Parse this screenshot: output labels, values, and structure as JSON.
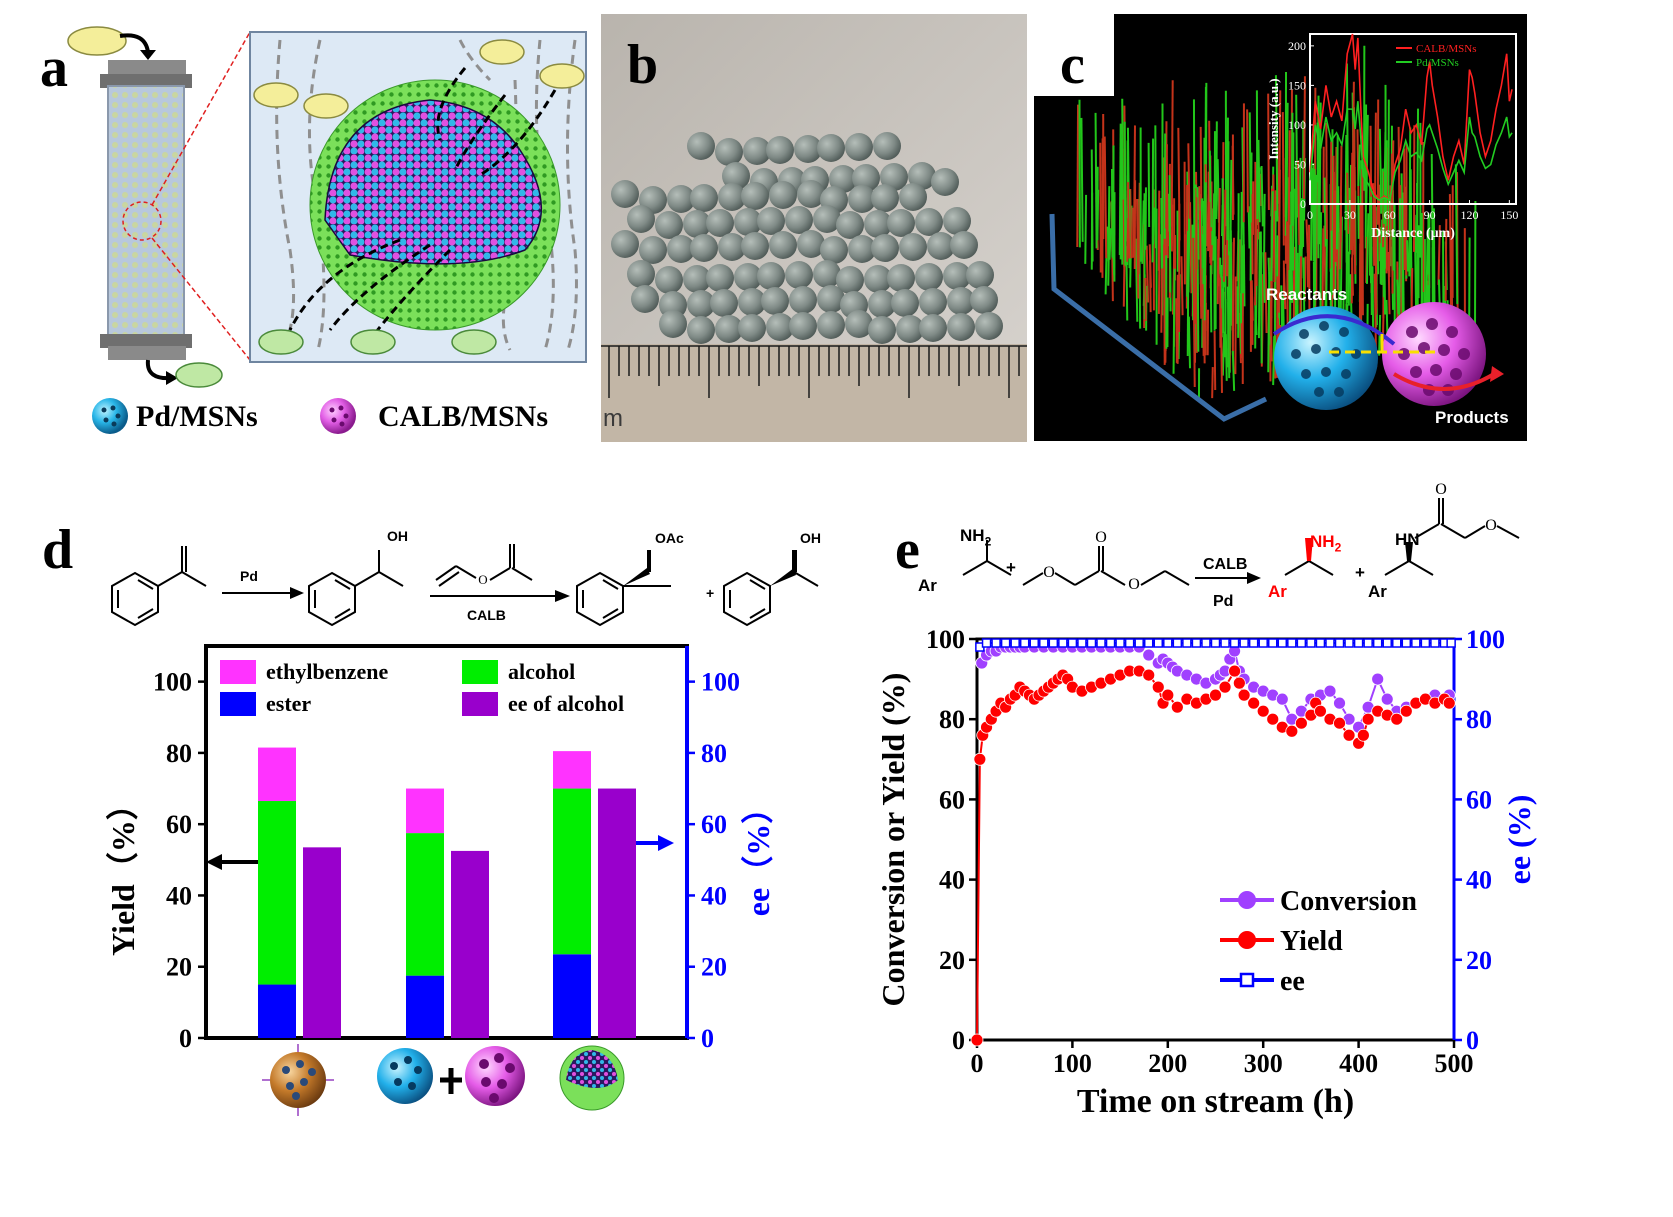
{
  "panels": {
    "a": "a",
    "b": "b",
    "c": "c",
    "d": "d",
    "e": "e"
  },
  "panel_a": {
    "legend_pd": "Pd/MSNs",
    "legend_calb": "CALB/MSNs"
  },
  "panel_b": {
    "ruler_mark": "m"
  },
  "panel_c": {
    "reactants": "Reactants",
    "products": "Products"
  },
  "scheme_d": {
    "reagent1": "Pd",
    "reagent2": "CALB",
    "oh_label": "OH",
    "oac_label": "OAc",
    "plus": "+"
  },
  "scheme_e": {
    "nh2": "NH",
    "nh2_sub": "2",
    "hn": "HN",
    "ar": "Ar",
    "calb": "CALB",
    "pd": "Pd",
    "plus": "+"
  },
  "colors": {
    "magenta": "#ff33ff",
    "green": "#00ee00",
    "blue": "#0000ff",
    "purple": "#9900cc",
    "conversion": "#a040ff",
    "yield": "#ff0000",
    "ee": "#0000ff",
    "calb_line": "#ff2020",
    "pd_line": "#22cc22"
  },
  "icons": [
    "Pd/MSNs-sphere-icon",
    "CALB/MSNs-sphere-icon",
    "core-shell-sphere-icon",
    "arrow-left-icon",
    "arrow-right-icon"
  ],
  "chart_data": [
    {
      "id": "inset_c",
      "type": "line",
      "xlabel": "Distance (μm)",
      "ylabel": "Intensity (a.u.)",
      "xlim": [
        0,
        155
      ],
      "ylim": [
        0,
        215
      ],
      "xticks": [
        "0",
        "30",
        "60",
        "90",
        "120",
        "150"
      ],
      "yticks": [
        "0",
        "50",
        "100",
        "150",
        "200"
      ],
      "legend_position": "top-right",
      "series": [
        {
          "name": "CALB/MSNs",
          "color": "#ff2020",
          "x": [
            0,
            4,
            8,
            12,
            16,
            20,
            24,
            28,
            32,
            34,
            36,
            38,
            40,
            44,
            48,
            52,
            56,
            60,
            64,
            68,
            72,
            76,
            80,
            84,
            88,
            90,
            92,
            96,
            100,
            104,
            108,
            112,
            116,
            120,
            122,
            124,
            128,
            132,
            136,
            140,
            144,
            148,
            150,
            152
          ],
          "y": [
            40,
            130,
            95,
            150,
            110,
            130,
            105,
            190,
            215,
            170,
            210,
            130,
            60,
            40,
            15,
            5,
            10,
            5,
            50,
            70,
            120,
            90,
            100,
            75,
            160,
            180,
            150,
            110,
            60,
            30,
            60,
            80,
            50,
            170,
            160,
            140,
            90,
            60,
            80,
            120,
            150,
            190,
            130,
            145
          ]
        },
        {
          "name": "Pd/MSNs",
          "color": "#22cc22",
          "x": [
            0,
            4,
            8,
            12,
            16,
            20,
            24,
            28,
            32,
            34,
            36,
            38,
            40,
            44,
            48,
            52,
            56,
            60,
            64,
            68,
            72,
            76,
            80,
            84,
            88,
            90,
            92,
            96,
            100,
            104,
            108,
            112,
            116,
            120,
            122,
            124,
            128,
            132,
            136,
            140,
            144,
            148,
            150,
            152
          ],
          "y": [
            30,
            100,
            70,
            110,
            80,
            90,
            75,
            120,
            120,
            95,
            130,
            90,
            35,
            25,
            10,
            5,
            8,
            5,
            40,
            55,
            80,
            60,
            65,
            55,
            95,
            100,
            90,
            70,
            45,
            25,
            40,
            55,
            40,
            110,
            90,
            85,
            60,
            45,
            50,
            75,
            90,
            110,
            85,
            90
          ]
        }
      ]
    },
    {
      "id": "bars_d",
      "type": "bar",
      "stacked": true,
      "ylabel": "Yield（%）",
      "y2label": "ee（%）",
      "ylim": [
        0,
        110
      ],
      "y2lim": [
        0,
        110
      ],
      "yticks": [
        "0",
        "20",
        "40",
        "60",
        "80",
        "100"
      ],
      "legend_position": "top",
      "legend": [
        {
          "name": "ethylbenzene",
          "color": "#ff33ff"
        },
        {
          "name": "alcohol",
          "color": "#00ee00"
        },
        {
          "name": "ester",
          "color": "#0000ff"
        },
        {
          "name": "ee of alcohol",
          "color": "#9900cc"
        }
      ],
      "categories_icons": [
        "Pd-CALB/MSNs",
        "Pd/MSNs + CALB/MSNs",
        "core-shell"
      ],
      "series": [
        {
          "name": "ester",
          "values": [
            15,
            17.5,
            23.5
          ]
        },
        {
          "name": "alcohol",
          "values": [
            51.5,
            40,
            46.5
          ]
        },
        {
          "name": "ethylbenzene",
          "values": [
            15,
            12.5,
            10.5
          ]
        },
        {
          "name": "ee of alcohol",
          "values": [
            53.5,
            52.5,
            70
          ]
        }
      ]
    },
    {
      "id": "stream_e",
      "type": "scatter",
      "xlabel": "Time on stream (h)",
      "ylabel": "Conversion or Yield (%)",
      "y2label": "ee (%)",
      "xlim": [
        0,
        500
      ],
      "ylim": [
        0,
        100
      ],
      "y2lim": [
        0,
        100
      ],
      "xticks": [
        "0",
        "100",
        "200",
        "300",
        "400",
        "500"
      ],
      "yticks": [
        "0",
        "20",
        "40",
        "60",
        "80",
        "100"
      ],
      "legend_position": "bottom-right",
      "series": [
        {
          "name": "Conversion",
          "color": "#a040ff",
          "x": [
            5,
            10,
            15,
            20,
            25,
            30,
            35,
            40,
            45,
            50,
            60,
            70,
            80,
            90,
            100,
            110,
            120,
            130,
            140,
            150,
            160,
            170,
            180,
            190,
            195,
            200,
            205,
            210,
            220,
            230,
            240,
            250,
            255,
            260,
            265,
            270,
            275,
            280,
            290,
            300,
            310,
            320,
            330,
            340,
            350,
            360,
            370,
            380,
            390,
            400,
            410,
            420,
            430,
            440,
            450,
            460,
            470,
            480,
            490,
            495
          ],
          "y": [
            94,
            96,
            97,
            97,
            98,
            98,
            98,
            98,
            98,
            98,
            98,
            98,
            98,
            98,
            98,
            98,
            98,
            98,
            98,
            98,
            98,
            98,
            96,
            94,
            95,
            94,
            93,
            92,
            91,
            90,
            89,
            90,
            91,
            92,
            95,
            97,
            92,
            90,
            88,
            87,
            86,
            85,
            80,
            82,
            85,
            86,
            87,
            84,
            80,
            78,
            83,
            90,
            85,
            82,
            83,
            84,
            85,
            86,
            85,
            86
          ]
        },
        {
          "name": "Yield",
          "color": "#ff0000",
          "x": [
            0,
            3,
            6,
            10,
            15,
            20,
            25,
            30,
            35,
            40,
            45,
            50,
            55,
            60,
            65,
            70,
            75,
            80,
            85,
            90,
            95,
            100,
            110,
            120,
            130,
            140,
            150,
            160,
            170,
            180,
            190,
            195,
            200,
            210,
            220,
            230,
            240,
            250,
            260,
            270,
            275,
            280,
            290,
            300,
            310,
            320,
            330,
            340,
            350,
            355,
            360,
            370,
            380,
            390,
            400,
            405,
            410,
            420,
            430,
            440,
            450,
            460,
            470,
            480,
            490,
            495
          ],
          "y": [
            0,
            70,
            76,
            78,
            80,
            82,
            84,
            83,
            85,
            86,
            88,
            87,
            86,
            85,
            86,
            87,
            88,
            89,
            90,
            91,
            90,
            88,
            87,
            88,
            89,
            90,
            91,
            92,
            92,
            91,
            88,
            84,
            86,
            83,
            85,
            84,
            85,
            86,
            88,
            92,
            89,
            86,
            84,
            82,
            80,
            78,
            77,
            79,
            81,
            84,
            82,
            80,
            79,
            76,
            74,
            76,
            80,
            82,
            81,
            80,
            82,
            84,
            85,
            84,
            85,
            84
          ]
        },
        {
          "name": "ee",
          "color": "#0000ff",
          "x": [
            3,
            10,
            20,
            30,
            40,
            50,
            60,
            70,
            80,
            90,
            100,
            110,
            120,
            130,
            140,
            150,
            160,
            170,
            180,
            190,
            200,
            210,
            220,
            230,
            240,
            250,
            260,
            270,
            280,
            290,
            300,
            310,
            320,
            330,
            340,
            350,
            360,
            370,
            380,
            390,
            400,
            410,
            420,
            430,
            440,
            450,
            460,
            470,
            480,
            490,
            497
          ],
          "y": [
            98,
            99,
            99,
            99,
            99,
            99,
            99,
            99,
            99,
            99,
            99,
            99,
            99,
            99,
            99,
            99,
            99,
            99,
            99,
            99,
            99,
            99,
            99,
            99,
            99,
            99,
            99,
            99,
            99,
            99,
            99,
            99,
            99,
            99,
            99,
            99,
            99,
            99,
            99,
            99,
            99,
            99,
            99,
            99,
            99,
            99,
            99,
            99,
            99,
            99,
            99
          ]
        }
      ]
    }
  ]
}
